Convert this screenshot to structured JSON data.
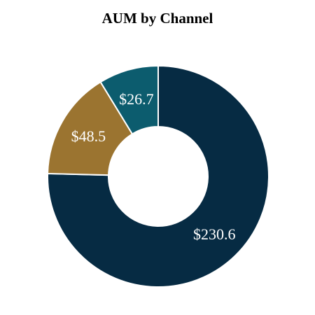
{
  "chart_data": {
    "type": "pie",
    "donut": true,
    "title": "AUM by Channel",
    "categories": [
      "",
      "",
      ""
    ],
    "values": [
      230.6,
      48.5,
      26.7
    ],
    "labels": [
      "$230.6",
      "$48.5",
      "$26.7"
    ],
    "colors": [
      "#062b43",
      "#9b7430",
      "#0c5c6e"
    ],
    "label_color": "#ffffff",
    "legend": "none"
  }
}
